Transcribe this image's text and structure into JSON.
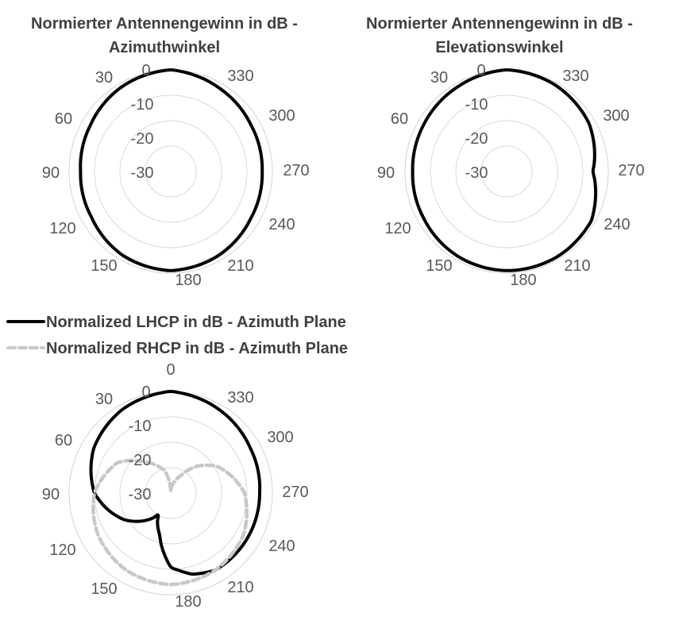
{
  "chart_data": [
    {
      "type": "polar-line",
      "title_lines": [
        "Normierter Antennengewinn in dB -",
        "Azimuthwinkel"
      ],
      "angle_unit": "deg",
      "angle_ticks": [
        0,
        330,
        300,
        270,
        240,
        210,
        180,
        150,
        120,
        90,
        60,
        30
      ],
      "angle_tick_labels": [
        "0",
        "330",
        "300",
        "270",
        "240",
        "210",
        "180",
        "150",
        "120",
        "90",
        "60",
        "30"
      ],
      "radial_ticks": [
        0,
        -10,
        -20,
        -30
      ],
      "radial_tick_labels": [
        "0",
        "-10",
        "-20",
        "-30"
      ],
      "rlim": [
        -40,
        0
      ],
      "grid": true,
      "series": [
        {
          "color": "#000000",
          "dashed": false,
          "angles": [
            0,
            30,
            60,
            90,
            120,
            150,
            180,
            210,
            240,
            270,
            300,
            330
          ],
          "values": [
            0,
            -1.5,
            -3.5,
            -4.5,
            -4,
            -2,
            -1,
            -2,
            -3.5,
            -4,
            -3.5,
            -2
          ]
        }
      ]
    },
    {
      "type": "polar-line",
      "title_lines": [
        "Normierter Antennengewinn in dB -",
        "Elevationswinkel"
      ],
      "angle_unit": "deg",
      "angle_ticks": [
        0,
        330,
        300,
        270,
        240,
        210,
        180,
        150,
        120,
        90,
        60,
        30
      ],
      "angle_tick_labels": [
        "0",
        "330",
        "300",
        "270",
        "240",
        "210",
        "180",
        "150",
        "120",
        "90",
        "60",
        "30"
      ],
      "radial_ticks": [
        0,
        -10,
        -20,
        -30
      ],
      "radial_tick_labels": [
        "0",
        "-10",
        "-20",
        "-30"
      ],
      "rlim": [
        -40,
        0
      ],
      "grid": true,
      "series": [
        {
          "color": "#000000",
          "dashed": false,
          "angles": [
            0,
            30,
            60,
            90,
            120,
            150,
            180,
            210,
            240,
            270,
            300,
            330
          ],
          "values": [
            0,
            -1.5,
            -2.5,
            -3,
            -2.5,
            -1.5,
            -1,
            -1,
            -1.5,
            -6,
            -2.5,
            -1
          ]
        }
      ]
    },
    {
      "type": "polar-line",
      "top_label": "0",
      "angle_unit": "deg",
      "angle_ticks": [
        330,
        300,
        270,
        240,
        210,
        180,
        150,
        120,
        90,
        60,
        30
      ],
      "angle_tick_labels": [
        "330",
        "300",
        "270",
        "240",
        "210",
        "180",
        "150",
        "120",
        "90",
        "60",
        "30"
      ],
      "radial_ticks": [
        0,
        -10,
        -20,
        -30
      ],
      "radial_tick_labels": [
        "0",
        "-10",
        "-20",
        "-30"
      ],
      "rlim": [
        -40,
        0
      ],
      "grid": true,
      "legend": "top-left",
      "series": [
        {
          "name": "Normalized LHCP in dB - Azimuth Plane",
          "color": "#000000",
          "dashed": false,
          "angles": [
            0,
            30,
            60,
            90,
            120,
            150,
            165,
            180,
            195,
            210,
            240,
            270,
            300,
            330
          ],
          "values": [
            0,
            -2,
            -5,
            -10,
            -19,
            -30,
            -23,
            -11,
            -7,
            -5,
            -5,
            -5,
            -4,
            -2
          ]
        },
        {
          "name": "Normalized RHCP in dB - Azimuth Plane",
          "color": "#c8c8c8",
          "dashed": true,
          "angles": [
            0,
            15,
            30,
            45,
            60,
            90,
            120,
            150,
            180,
            210,
            240,
            270,
            300,
            315,
            330,
            345
          ],
          "values": [
            -39,
            -31,
            -27,
            -22,
            -16,
            -10,
            -7,
            -5,
            -4,
            -5,
            -7,
            -11,
            -19,
            -25,
            -32,
            -36
          ]
        }
      ]
    }
  ]
}
